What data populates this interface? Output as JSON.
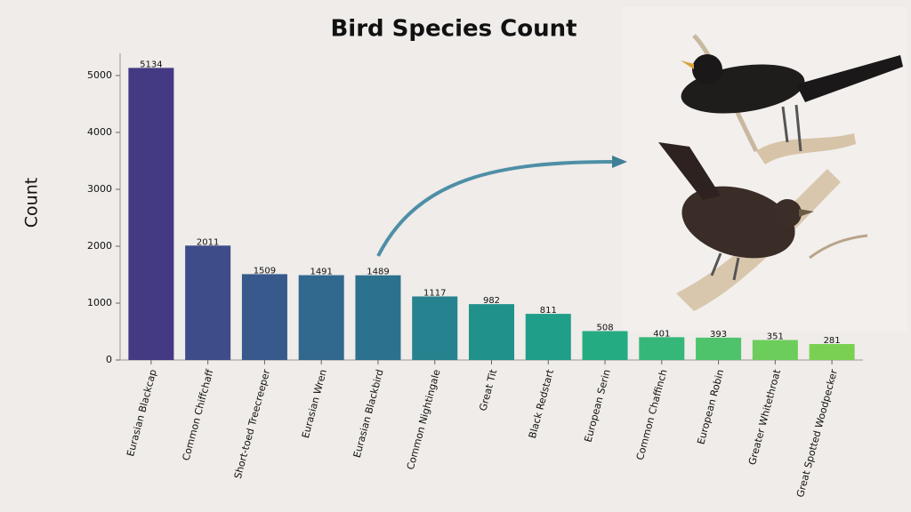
{
  "chart_data": {
    "type": "bar",
    "title": "Bird Species Count",
    "y_label": "Count",
    "categories": [
      "Eurasian Blackcap",
      "Common Chiffchaff",
      "Short-toed Treecreeper",
      "Eurasian Wren",
      "Eurasian Blackbird",
      "Common Nightingale",
      "Great Tit",
      "Black Redstart",
      "European Serin",
      "Common Chaffinch",
      "European Robin",
      "Greater Whitethroat",
      "Great Spotted Woodpecker"
    ],
    "values": [
      5134,
      2011,
      1509,
      1491,
      1489,
      1117,
      982,
      811,
      508,
      401,
      393,
      351,
      281
    ],
    "colors": [
      "#443983",
      "#3e4c8a",
      "#37598c",
      "#31688e",
      "#2c718e",
      "#26828e",
      "#21918c",
      "#1f9e89",
      "#25ab82",
      "#35b779",
      "#4ec36b",
      "#6ccd5a",
      "#7ad151"
    ],
    "ylim": [
      0,
      5390
    ],
    "yticks": [
      0,
      1000,
      2000,
      3000,
      4000,
      5000
    ],
    "grid": false
  }
}
